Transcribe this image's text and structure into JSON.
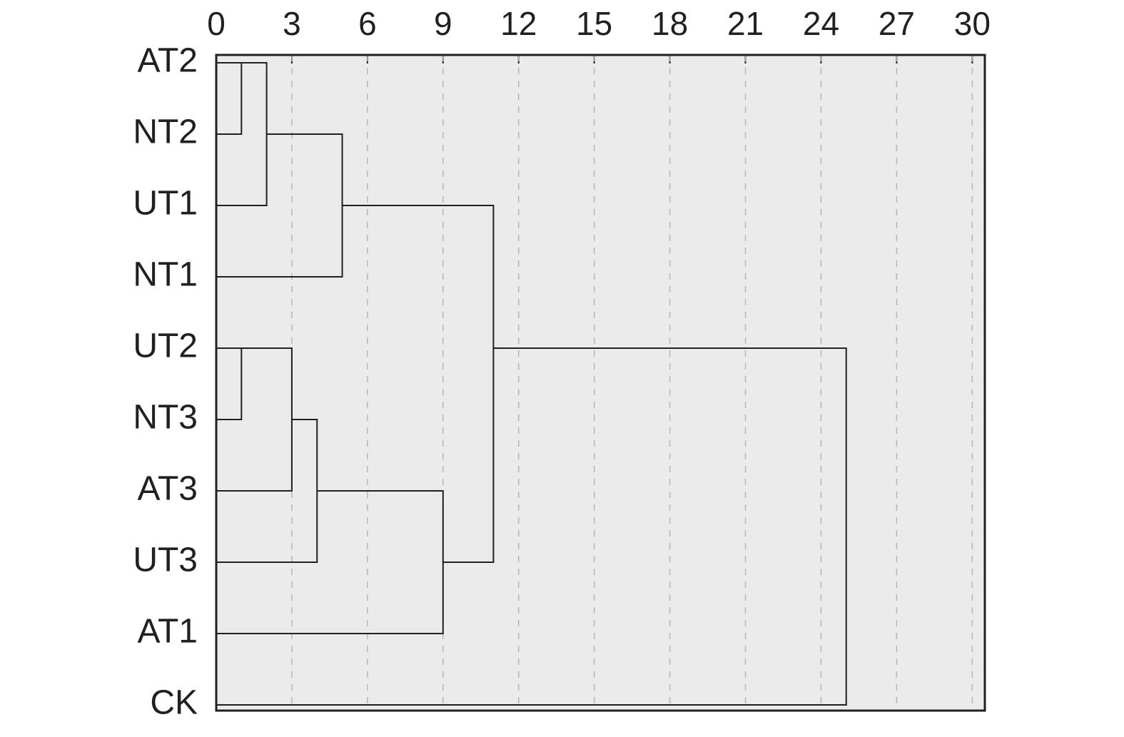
{
  "chart_data": {
    "type": "dendrogram",
    "xlim": [
      0,
      30.5
    ],
    "xticks": [
      0,
      3,
      6,
      9,
      12,
      15,
      18,
      21,
      24,
      27,
      30
    ],
    "grid": true,
    "color": "#231f20",
    "tree": {
      "height": 25,
      "children": [
        {
          "height": 11,
          "children": [
            {
              "height": 5,
              "children": [
                {
                  "height": 2,
                  "children": [
                    {
                      "height": 1,
                      "children": [
                        "AT2",
                        "NT2"
                      ]
                    },
                    "UT1"
                  ]
                },
                "NT1"
              ]
            },
            {
              "height": 9,
              "children": [
                {
                  "height": 4,
                  "children": [
                    {
                      "height": 3,
                      "children": [
                        {
                          "height": 1,
                          "children": [
                            "UT2",
                            "NT3"
                          ]
                        },
                        "AT3"
                      ]
                    },
                    "UT3"
                  ]
                },
                "AT1"
              ]
            }
          ]
        },
        "CK"
      ]
    }
  }
}
